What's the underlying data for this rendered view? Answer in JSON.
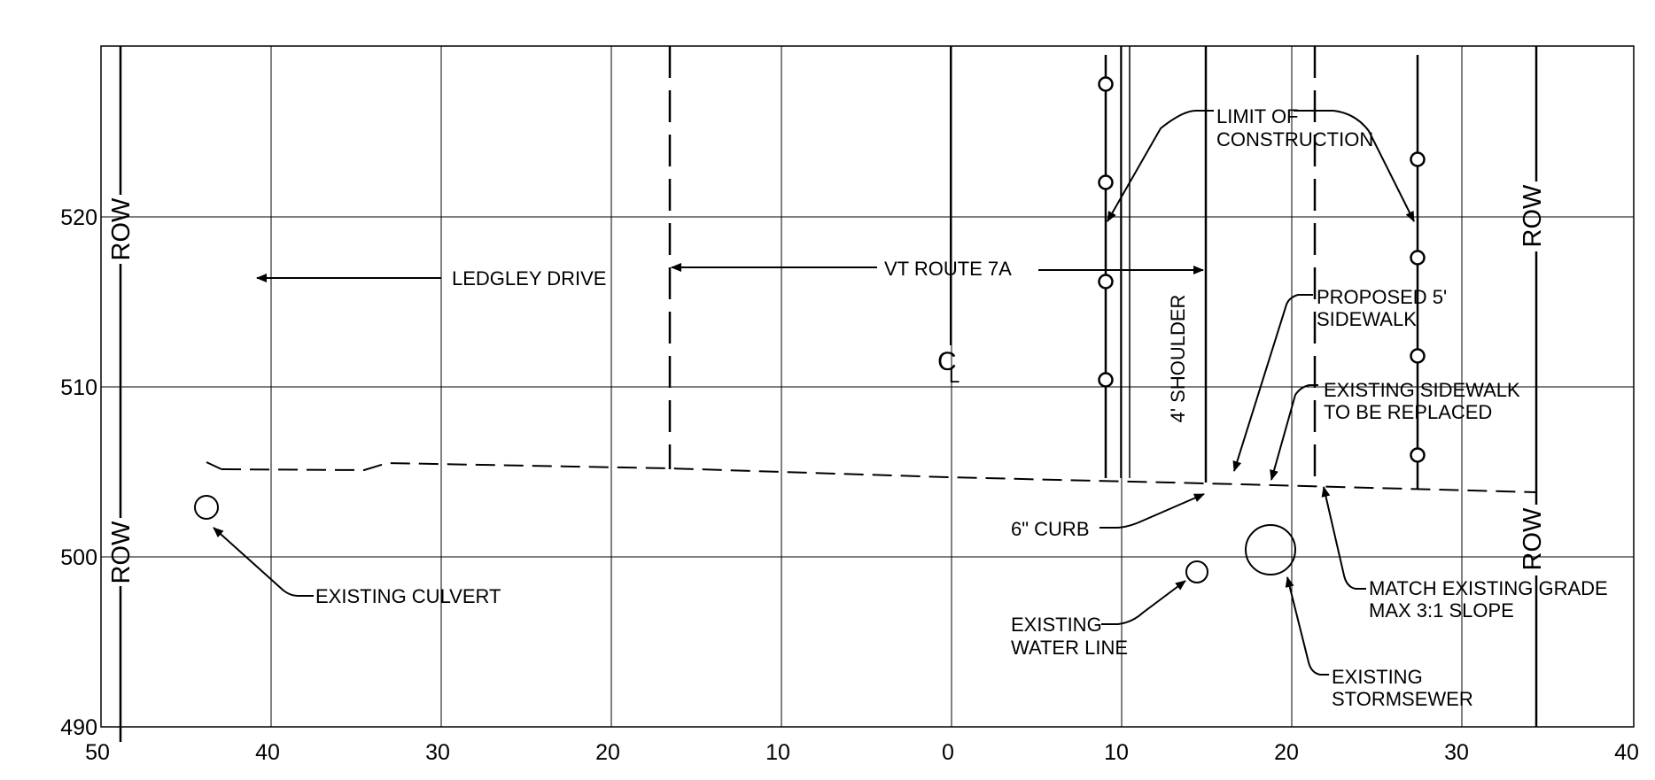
{
  "axes": {
    "x_ticks": [
      "50",
      "40",
      "30",
      "20",
      "10",
      "0",
      "10",
      "20",
      "30",
      "40"
    ],
    "y_ticks": [
      "520",
      "510",
      "500",
      "490"
    ]
  },
  "labels": {
    "row": "ROW",
    "ledgley_drive": "LEDGLEY DRIVE",
    "vt_route": "VT ROUTE 7A",
    "limit_line1": "LIMIT OF",
    "limit_line2": "CONSTRUCTION",
    "shoulder": "4' SHOULDER",
    "proposed_line1": "PROPOSED 5'",
    "proposed_line2": "SIDEWALK",
    "existing_sw_line1": "EXISTING SIDEWALK",
    "existing_sw_line2": "TO BE REPLACED",
    "curb": "6\" CURB",
    "culvert": "EXISTING CULVERT",
    "water_line1": "EXISTING",
    "water_line2": "WATER LINE",
    "match_line1": "MATCH EXISTING GRADE",
    "match_line2": "MAX 3:1 SLOPE",
    "storm_line1": "EXISTING",
    "storm_line2": "STORMSEWER",
    "centerline_c": "C",
    "centerline_l": "L"
  }
}
